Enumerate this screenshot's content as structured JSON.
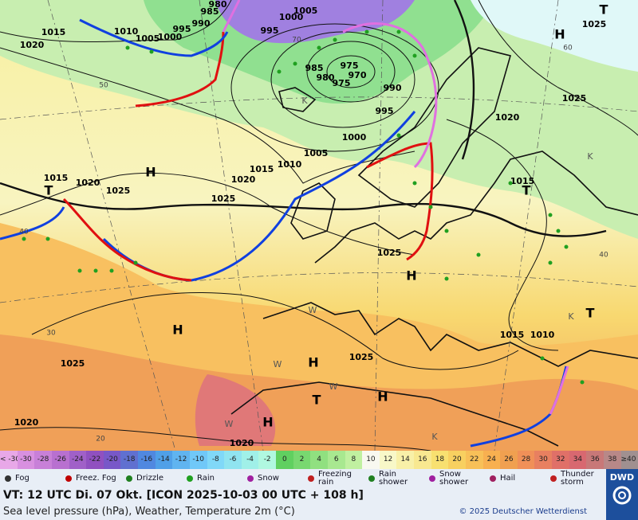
{
  "map": {
    "pressure_labels": [
      "1015",
      "1020",
      "1010",
      "1005",
      "1000",
      "995",
      "990",
      "985",
      "980",
      "1000",
      "1005",
      "995",
      "985",
      "980",
      "975",
      "970",
      "975",
      "990",
      "995",
      "1000",
      "1005",
      "1010",
      "1015",
      "1020",
      "1025",
      "1025",
      "1015",
      "1020",
      "1025",
      "1020",
      "1015",
      "1025",
      "1025",
      "1015",
      "1010",
      "1025",
      "1020",
      "1020",
      "1025"
    ],
    "centers": [
      "H",
      "H",
      "T",
      "H",
      "H",
      "H",
      "H",
      "T",
      "H",
      "T",
      "T",
      "T"
    ],
    "isotherm_labels": [
      "50",
      "40",
      "30",
      "20",
      "40",
      "60",
      "70"
    ],
    "weather_letters": [
      "W",
      "W",
      "W",
      "W",
      "K",
      "K",
      "K",
      "K"
    ]
  },
  "scale": {
    "labels": [
      "< -30",
      "-30",
      "-28",
      "-26",
      "-24",
      "-22",
      "-20",
      "-18",
      "-16",
      "-14",
      "-12",
      "-10",
      "-8",
      "-6",
      "-4",
      "-2",
      "0",
      "2",
      "4",
      "6",
      "8",
      "10",
      "12",
      "14",
      "16",
      "18",
      "20",
      "22",
      "24",
      "26",
      "28",
      "30",
      "32",
      "34",
      "36",
      "38",
      "≥40 °C"
    ],
    "colors": [
      "#e8a8e8",
      "#d890e0",
      "#c880d8",
      "#b870d0",
      "#a060c8",
      "#9050c0",
      "#7858c8",
      "#6070d0",
      "#5088e0",
      "#50a0e8",
      "#60b4f0",
      "#70c8f8",
      "#80d8f8",
      "#90e4f0",
      "#a0f0e8",
      "#b0f8e0",
      "#60d060",
      "#78d870",
      "#90e080",
      "#a8e890",
      "#c0f0a0",
      "#f8f8f0",
      "#f8f8c8",
      "#f8f0a8",
      "#f8e890",
      "#f8e070",
      "#f8d060",
      "#f8c058",
      "#f8b050",
      "#f0a050",
      "#f09058",
      "#e88060",
      "#e07068",
      "#d86870",
      "#c87878",
      "#b88888",
      "#a09090"
    ]
  },
  "legend": [
    "Fog",
    "Freez. Fog",
    "Drizzle",
    "Rain",
    "Snow",
    "Freezing rain",
    "Rain shower",
    "Snow shower",
    "Hail",
    "Thunder storm"
  ],
  "footer": {
    "valid_time": "VT: 12 UTC Di.  07 Okt. [ICON 2025-10-03  00 UTC + 108 h]",
    "description": "Sea level pressure (hPa), Weather, Temperature 2m (°C)",
    "copyright": "© 2025 Deutscher Wetterdienst",
    "logo": "DWD"
  }
}
